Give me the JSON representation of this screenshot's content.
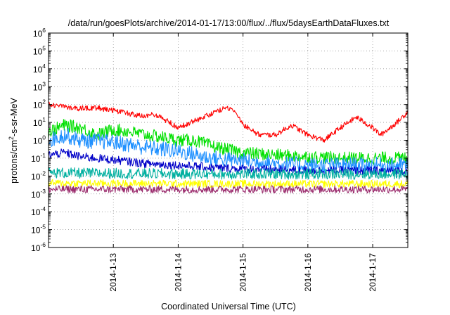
{
  "chart_data": {
    "type": "line",
    "title": "/data/run/goesPlots/archive/2014-01-17/13:00/flux/../flux/5daysEarthDataFluxes.txt",
    "xlabel": "Coordinated Universal Time (UTC)",
    "ylabel": {
      "base": "protons/cm",
      "sup": "2",
      "rest": "-s-sr-MeV"
    },
    "xlim": [
      "2014-01-12 00:00",
      "2014-01-17 13:00"
    ],
    "x_ticks": [
      {
        "date": "2014-01-13",
        "label": "2014-1-13"
      },
      {
        "date": "2014-01-14",
        "label": "2014-1-14"
      },
      {
        "date": "2014-01-15",
        "label": "2014-1-15"
      },
      {
        "date": "2014-01-16",
        "label": "2014-1-16"
      },
      {
        "date": "2014-01-17",
        "label": "2014-1-17"
      }
    ],
    "y_scale": "log",
    "ylim": [
      1e-06,
      1000000.0
    ],
    "y_ticks": [
      {
        "value": 1e-06,
        "exp": "-6"
      },
      {
        "value": 1e-05,
        "exp": "-5"
      },
      {
        "value": 0.0001,
        "exp": "-4"
      },
      {
        "value": 0.001,
        "exp": "-3"
      },
      {
        "value": 0.01,
        "exp": "-2"
      },
      {
        "value": 0.1,
        "exp": "-1"
      },
      {
        "value": 1,
        "exp": "0"
      },
      {
        "value": 10,
        "exp": "1"
      },
      {
        "value": 100,
        "exp": "2"
      },
      {
        "value": 1000,
        "exp": "3"
      },
      {
        "value": 10000,
        "exp": "4"
      },
      {
        "value": 100000,
        "exp": "5"
      },
      {
        "value": 1000000,
        "exp": "6"
      }
    ],
    "y_tick_base": "10",
    "grid": true,
    "legend": "none",
    "series": [
      {
        "color": "#ff0000",
        "noise": 0.05,
        "points": [
          [
            "2014-01-12 00:00",
            110
          ],
          [
            "2014-01-12 06:00",
            70
          ],
          [
            "2014-01-12 12:00",
            60
          ],
          [
            "2014-01-12 18:00",
            65
          ],
          [
            "2014-01-13 00:00",
            45
          ],
          [
            "2014-01-13 06:00",
            30
          ],
          [
            "2014-01-13 12:00",
            20
          ],
          [
            "2014-01-13 15:00",
            30
          ],
          [
            "2014-01-13 18:00",
            18
          ],
          [
            "2014-01-14 00:00",
            5
          ],
          [
            "2014-01-14 06:00",
            12
          ],
          [
            "2014-01-14 12:00",
            30
          ],
          [
            "2014-01-14 18:00",
            70
          ],
          [
            "2014-01-14 21:00",
            40
          ],
          [
            "2014-01-15 00:00",
            8
          ],
          [
            "2014-01-15 06:00",
            2
          ],
          [
            "2014-01-15 12:00",
            2
          ],
          [
            "2014-01-15 18:00",
            7
          ],
          [
            "2014-01-16 00:00",
            2
          ],
          [
            "2014-01-16 06:00",
            1
          ],
          [
            "2014-01-16 12:00",
            5
          ],
          [
            "2014-01-16 18:00",
            20
          ],
          [
            "2014-01-17 00:00",
            5
          ],
          [
            "2014-01-17 03:00",
            2
          ],
          [
            "2014-01-17 09:00",
            10
          ],
          [
            "2014-01-17 13:00",
            40
          ]
        ]
      },
      {
        "color": "#00e000",
        "noise": 0.12,
        "points": [
          [
            "2014-01-12 00:00",
            3
          ],
          [
            "2014-01-12 06:00",
            7
          ],
          [
            "2014-01-12 12:00",
            5
          ],
          [
            "2014-01-12 18:00",
            2
          ],
          [
            "2014-01-13 00:00",
            4
          ],
          [
            "2014-01-13 06:00",
            3
          ],
          [
            "2014-01-13 12:00",
            2
          ],
          [
            "2014-01-13 18:00",
            1.5
          ],
          [
            "2014-01-14 00:00",
            1
          ],
          [
            "2014-01-14 06:00",
            1
          ],
          [
            "2014-01-14 12:00",
            0.5
          ],
          [
            "2014-01-14 18:00",
            0.3
          ],
          [
            "2014-01-15 00:00",
            0.2
          ],
          [
            "2014-01-15 12:00",
            0.15
          ],
          [
            "2014-01-16 00:00",
            0.12
          ],
          [
            "2014-01-16 12:00",
            0.1
          ],
          [
            "2014-01-17 00:00",
            0.1
          ],
          [
            "2014-01-17 13:00",
            0.1
          ]
        ]
      },
      {
        "color": "#1e90ff",
        "noise": 0.15,
        "points": [
          [
            "2014-01-12 00:00",
            1
          ],
          [
            "2014-01-12 06:00",
            2
          ],
          [
            "2014-01-12 12:00",
            1
          ],
          [
            "2014-01-13 00:00",
            0.8
          ],
          [
            "2014-01-13 12:00",
            0.4
          ],
          [
            "2014-01-14 00:00",
            0.25
          ],
          [
            "2014-01-14 12:00",
            0.1
          ],
          [
            "2014-01-15 00:00",
            0.07
          ],
          [
            "2014-01-15 12:00",
            0.05
          ],
          [
            "2014-01-16 00:00",
            0.04
          ],
          [
            "2014-01-16 12:00",
            0.04
          ],
          [
            "2014-01-17 00:00",
            0.04
          ],
          [
            "2014-01-17 13:00",
            0.04
          ]
        ]
      },
      {
        "color": "#0000c8",
        "noise": 0.08,
        "points": [
          [
            "2014-01-12 00:00",
            0.15
          ],
          [
            "2014-01-12 06:00",
            0.2
          ],
          [
            "2014-01-12 12:00",
            0.12
          ],
          [
            "2014-01-13 00:00",
            0.08
          ],
          [
            "2014-01-13 12:00",
            0.05
          ],
          [
            "2014-01-14 00:00",
            0.04
          ],
          [
            "2014-01-14 12:00",
            0.03
          ],
          [
            "2014-01-15 00:00",
            0.025
          ],
          [
            "2014-01-16 00:00",
            0.02
          ],
          [
            "2014-01-17 00:00",
            0.02
          ],
          [
            "2014-01-17 13:00",
            0.02
          ]
        ]
      },
      {
        "color": "#00b0a0",
        "noise": 0.1,
        "points": [
          [
            "2014-01-12 00:00",
            0.015
          ],
          [
            "2014-01-14 00:00",
            0.013
          ],
          [
            "2014-01-16 00:00",
            0.013
          ],
          [
            "2014-01-17 13:00",
            0.013
          ]
        ]
      },
      {
        "color": "#ffff00",
        "noise": 0.07,
        "points": [
          [
            "2014-01-12 00:00",
            0.004
          ],
          [
            "2014-01-14 00:00",
            0.0037
          ],
          [
            "2014-01-16 00:00",
            0.0036
          ],
          [
            "2014-01-17 13:00",
            0.0036
          ]
        ]
      },
      {
        "color": "#9b2d6e",
        "noise": 0.07,
        "points": [
          [
            "2014-01-12 00:00",
            0.0018
          ],
          [
            "2014-01-14 00:00",
            0.0018
          ],
          [
            "2014-01-16 00:00",
            0.0018
          ],
          [
            "2014-01-17 13:00",
            0.0018
          ]
        ]
      }
    ]
  }
}
